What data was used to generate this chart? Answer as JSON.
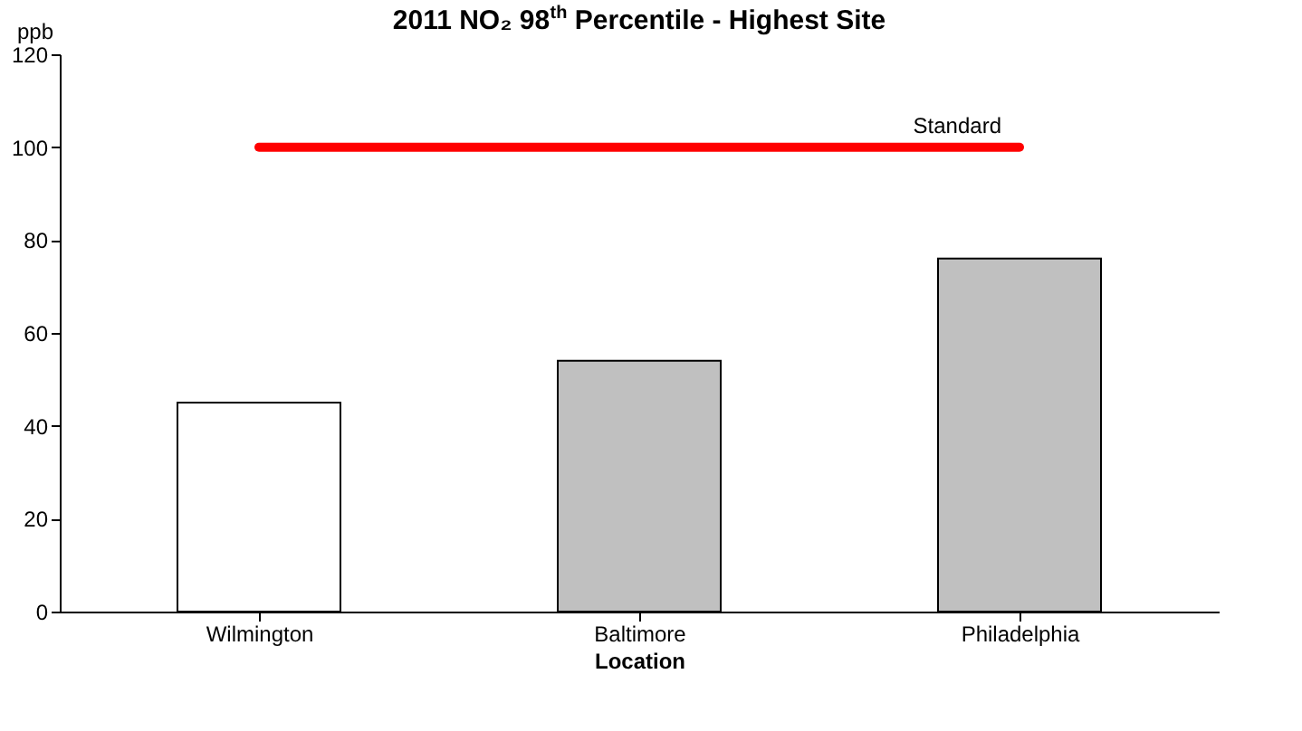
{
  "chart_data": {
    "type": "bar",
    "title": "2011 NO₂ 98$^{th}$ Percentile - Highest Site",
    "xlabel": "Location",
    "ylabel": "ppb",
    "categories": [
      "Wilmington",
      "Baltimore",
      "Philadelphia"
    ],
    "values": [
      45,
      54,
      76
    ],
    "colors": [
      "#ffffff",
      "#c0c0c0",
      "#c0c0c0"
    ],
    "ylim": [
      0,
      120
    ],
    "yticks": [
      0,
      20,
      40,
      60,
      80,
      100,
      120
    ],
    "grid": false,
    "ref_lines": [
      {
        "axis": "y",
        "value": 100,
        "label": "Standard",
        "color": "#ff0000"
      }
    ]
  }
}
